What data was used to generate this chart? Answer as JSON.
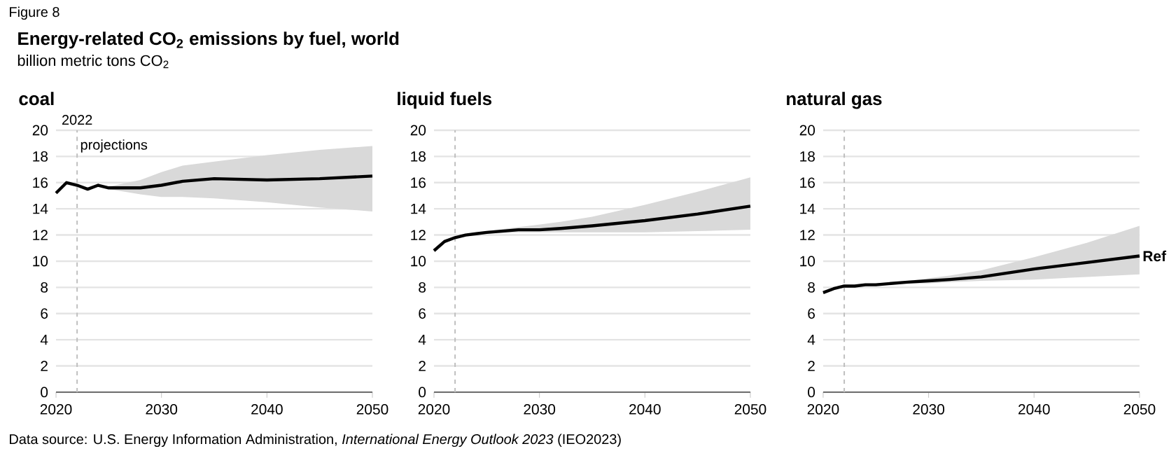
{
  "chart_data": [
    {
      "type": "line",
      "title": "coal",
      "ylabel": "billion metric tons CO$_{2}$",
      "annotations": [
        "Figure 8",
        "Energy-related CO$_{2}$ emissions by fuel, world",
        "Data source: U.S. Energy Information Administration, *International Energy Outlook 2023* (IEO2023)",
        {
          "text": "projections",
          "x": 2022,
          "y": 18.8
        }
      ],
      "x": [
        2020,
        2021,
        2022,
        2023,
        2024,
        2025,
        2028,
        2030,
        2032,
        2035,
        2040,
        2045,
        2050
      ],
      "series": [
        {
          "color": "#000000",
          "values": [
            15.2,
            16.0,
            15.8,
            15.5,
            15.8,
            15.6,
            15.6,
            15.8,
            16.1,
            16.3,
            16.2,
            16.3,
            16.5
          ],
          "upper": [
            null,
            null,
            15.8,
            15.6,
            15.8,
            15.7,
            16.2,
            16.8,
            17.3,
            17.6,
            18.1,
            18.5,
            18.8
          ],
          "lower": [
            null,
            null,
            15.8,
            15.5,
            15.8,
            15.5,
            15.1,
            14.9,
            14.9,
            14.8,
            14.5,
            14.1,
            13.8
          ]
        }
      ],
      "xlim": [
        2020,
        2050
      ],
      "xticks": [
        2020,
        2030,
        2040,
        2050
      ],
      "ylim": [
        0,
        20
      ],
      "yticks": [
        0,
        2,
        4,
        6,
        8,
        10,
        12,
        14,
        16,
        18,
        20
      ],
      "grid": "y",
      "ref_lines": [
        {
          "axis": "x",
          "value": 2022,
          "label": "2022",
          "color": "#bfbfbf",
          "line_style": "dashed"
        }
      ]
    },
    {
      "type": "line",
      "title": "liquid fuels",
      "x": [
        2020,
        2021,
        2022,
        2023,
        2024,
        2025,
        2028,
        2030,
        2032,
        2035,
        2040,
        2045,
        2050
      ],
      "series": [
        {
          "color": "#000000",
          "values": [
            10.8,
            11.5,
            11.8,
            12.0,
            12.1,
            12.2,
            12.4,
            12.4,
            12.5,
            12.7,
            13.1,
            13.6,
            14.2
          ],
          "upper": [
            null,
            null,
            11.8,
            12.0,
            12.1,
            12.3,
            12.6,
            12.8,
            13.0,
            13.4,
            14.3,
            15.3,
            16.4
          ],
          "lower": [
            null,
            null,
            11.8,
            12.0,
            12.1,
            12.1,
            12.2,
            12.2,
            12.2,
            12.2,
            12.2,
            12.3,
            12.4
          ]
        }
      ],
      "xlim": [
        2020,
        2050
      ],
      "xticks": [
        2020,
        2030,
        2040,
        2050
      ],
      "ylim": [
        0,
        20
      ],
      "yticks": [
        0,
        2,
        4,
        6,
        8,
        10,
        12,
        14,
        16,
        18,
        20
      ],
      "grid": "y",
      "ref_lines": [
        {
          "axis": "x",
          "value": 2022,
          "color": "#bfbfbf",
          "line_style": "dashed"
        }
      ]
    },
    {
      "type": "line",
      "title": "natural gas",
      "x": [
        2020,
        2021,
        2022,
        2023,
        2024,
        2025,
        2028,
        2030,
        2032,
        2035,
        2040,
        2045,
        2050
      ],
      "series": [
        {
          "name": "Ref",
          "color": "#000000",
          "values": [
            7.6,
            7.9,
            8.1,
            8.1,
            8.2,
            8.2,
            8.4,
            8.5,
            8.6,
            8.8,
            9.4,
            9.9,
            10.4
          ],
          "upper": [
            null,
            null,
            8.1,
            8.1,
            8.2,
            8.3,
            8.5,
            8.7,
            8.9,
            9.3,
            10.3,
            11.4,
            12.7
          ],
          "lower": [
            null,
            null,
            8.1,
            8.1,
            8.1,
            8.2,
            8.3,
            8.3,
            8.4,
            8.5,
            8.6,
            8.8,
            9.0
          ]
        }
      ],
      "xlim": [
        2020,
        2050
      ],
      "xticks": [
        2020,
        2030,
        2040,
        2050
      ],
      "ylim": [
        0,
        20
      ],
      "yticks": [
        0,
        2,
        4,
        6,
        8,
        10,
        12,
        14,
        16,
        18,
        20
      ],
      "grid": "y",
      "ref_lines": [
        {
          "axis": "x",
          "value": 2022,
          "color": "#bfbfbf",
          "line_style": "dashed"
        }
      ]
    }
  ]
}
